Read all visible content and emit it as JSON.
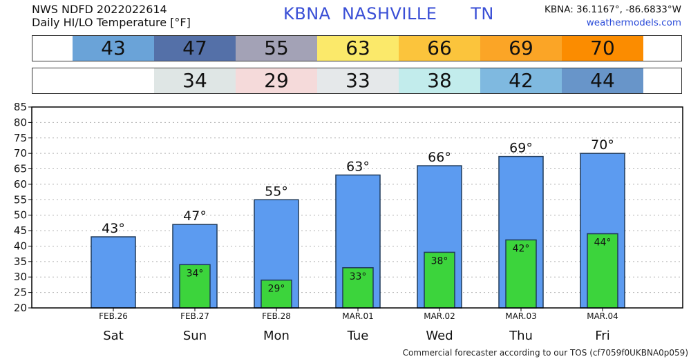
{
  "header": {
    "line1": "NWS NDFD 2022022614",
    "line2": "Daily HI/LO Temperature [°F]",
    "station_id": "KBNA",
    "city": "NASHVILLE",
    "state": "TN",
    "coords": "KBNA: 36.1167°, -86.6833°W",
    "site": "weathermodels.com"
  },
  "hi_strip": {
    "values": [
      "43",
      "47",
      "55",
      "63",
      "66",
      "69",
      "70"
    ],
    "colors": [
      "#6aa3d8",
      "#5470a8",
      "#a3a2b6",
      "#fbe96a",
      "#fbc43c",
      "#fba526",
      "#fb8c00"
    ]
  },
  "lo_strip": {
    "values": [
      "34",
      "29",
      "33",
      "38",
      "42",
      "44"
    ],
    "colors": [
      "#dfe6e5",
      "#f5dada",
      "#e5e8ea",
      "#c2ecec",
      "#7fb9e0",
      "#6895c9"
    ]
  },
  "footer": "Commercial forecaster according to our TOS (cf7059f0UKBNA0p059)",
  "chart_data": {
    "type": "bar",
    "categories": [
      "Sat",
      "Sun",
      "Mon",
      "Tue",
      "Wed",
      "Thu",
      "Fri"
    ],
    "dates": [
      "FEB.26",
      "FEB.27",
      "FEB.28",
      "MAR.01",
      "MAR.02",
      "MAR.03",
      "MAR.04"
    ],
    "series": [
      {
        "values": [
          43,
          47,
          55,
          63,
          66,
          69,
          70
        ],
        "color": "#5c9bf0"
      },
      {
        "values": [
          null,
          34,
          29,
          33,
          38,
          42,
          44
        ],
        "color": "#3cd43c"
      }
    ],
    "labels": {
      "hi": [
        "43°",
        "47°",
        "55°",
        "63°",
        "66°",
        "69°",
        "70°"
      ],
      "lo": [
        "",
        "34°",
        "29°",
        "33°",
        "38°",
        "42°",
        "44°"
      ]
    },
    "ylim": [
      20,
      85
    ],
    "yticks": [
      20,
      25,
      30,
      35,
      40,
      45,
      50,
      55,
      60,
      65,
      70,
      75,
      80,
      85
    ],
    "grid": true
  }
}
